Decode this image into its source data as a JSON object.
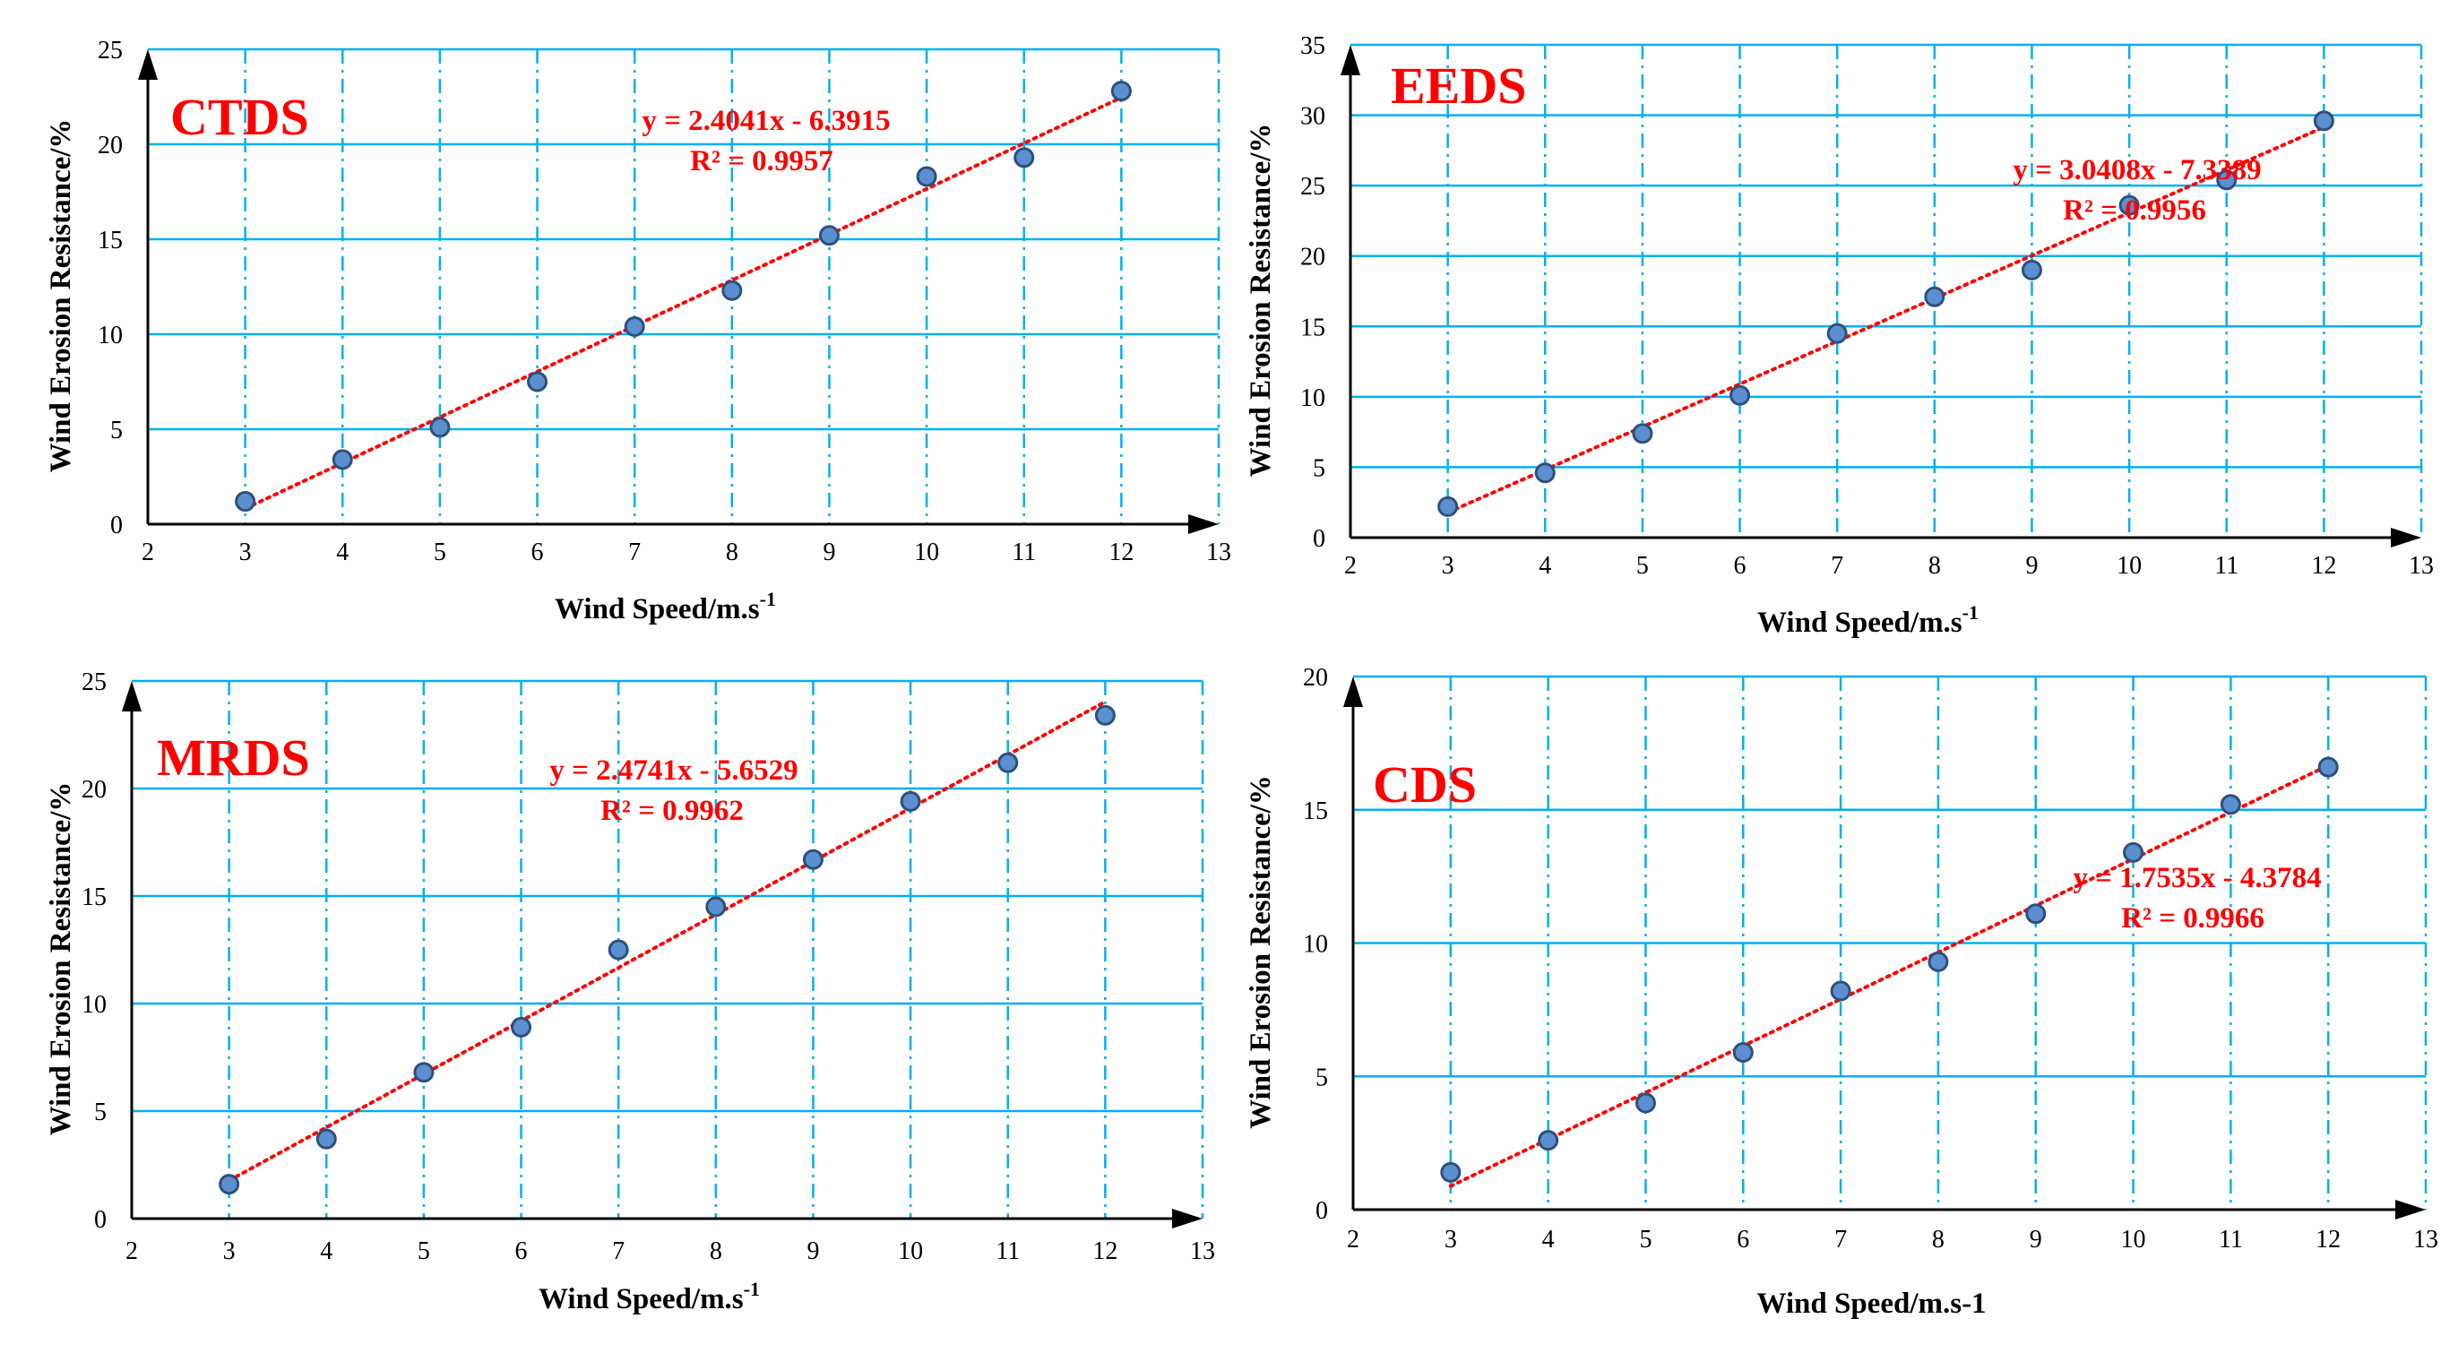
{
  "colors": {
    "grid": "#00b0f0",
    "axis": "#000000",
    "point_fill": "#5b8fd0",
    "point_stroke": "#2e4f7a",
    "trend": "#ff0000",
    "title": "#ff0000",
    "equation": "#ff0000"
  },
  "chart_data": [
    {
      "type": "scatter",
      "title": "CTDS",
      "xlabel": "Wind Speed/m.s",
      "xlabel_sup": "-1",
      "ylabel": "Wind Erosion Resistance/%",
      "xlim": [
        2,
        13
      ],
      "ylim": [
        0,
        25
      ],
      "xticks": [
        2,
        3,
        4,
        5,
        6,
        7,
        8,
        9,
        10,
        11,
        12,
        13
      ],
      "yticks": [
        0,
        5,
        10,
        15,
        20,
        25
      ],
      "x": [
        3,
        4,
        5,
        6,
        7,
        8,
        9,
        10,
        11,
        12
      ],
      "y": [
        1.2,
        3.4,
        5.1,
        7.5,
        10.4,
        12.3,
        15.2,
        18.3,
        19.3,
        22.8
      ],
      "trendline": {
        "slope": 2.4041,
        "intercept": -6.3915,
        "x_range": [
          3,
          12
        ]
      },
      "equation": "y = 2.4041x - 6.3915",
      "r2": "R² = 0.9957"
    },
    {
      "type": "scatter",
      "title": "EEDS",
      "xlabel": "Wind Speed/m.s",
      "xlabel_sup": "-1",
      "ylabel": "Wind Erosion Resistance/%",
      "xlim": [
        2,
        13
      ],
      "ylim": [
        0,
        35
      ],
      "xticks": [
        2,
        3,
        4,
        5,
        6,
        7,
        8,
        9,
        10,
        11,
        12,
        13
      ],
      "yticks": [
        0,
        5,
        10,
        15,
        20,
        25,
        30,
        35
      ],
      "x": [
        3,
        4,
        5,
        6,
        7,
        8,
        9,
        10,
        11,
        12
      ],
      "y": [
        2.2,
        4.6,
        7.4,
        10.1,
        14.5,
        17.1,
        19.0,
        23.6,
        25.4,
        29.6
      ],
      "trendline": {
        "slope": 3.0408,
        "intercept": -7.3389,
        "x_range": [
          3,
          12
        ]
      },
      "equation": "y = 3.0408x - 7.3389",
      "r2": "R² = 0.9956"
    },
    {
      "type": "scatter",
      "title": "MRDS",
      "xlabel": "Wind Speed/m.s",
      "xlabel_sup": "-1",
      "ylabel": "Wind Erosion Resistance/%",
      "xlim": [
        2,
        13
      ],
      "ylim": [
        0,
        25
      ],
      "xticks": [
        2,
        3,
        4,
        5,
        6,
        7,
        8,
        9,
        10,
        11,
        12,
        13
      ],
      "yticks": [
        0,
        5,
        10,
        15,
        20,
        25
      ],
      "x": [
        3,
        4,
        5,
        6,
        7,
        8,
        9,
        10,
        11,
        12
      ],
      "y": [
        1.6,
        3.7,
        6.8,
        8.9,
        12.5,
        14.5,
        16.7,
        19.4,
        21.2,
        23.4
      ],
      "trendline": {
        "slope": 2.4741,
        "intercept": -5.6529,
        "x_range": [
          3,
          12
        ]
      },
      "equation": "y = 2.4741x - 5.6529",
      "r2": "R² = 0.9962"
    },
    {
      "type": "scatter",
      "title": "CDS",
      "xlabel": "Wind Speed/m.s-1",
      "xlabel_sup": "",
      "ylabel": "Wind  Erosion Resistance/%",
      "xlim": [
        2,
        13
      ],
      "ylim": [
        0,
        20
      ],
      "xticks": [
        2,
        3,
        4,
        5,
        6,
        7,
        8,
        9,
        10,
        11,
        12,
        13
      ],
      "yticks": [
        0,
        5,
        10,
        15,
        20
      ],
      "x": [
        3,
        4,
        5,
        6,
        7,
        8,
        9,
        10,
        11,
        12
      ],
      "y": [
        1.4,
        2.6,
        4.0,
        5.9,
        8.2,
        9.3,
        11.1,
        13.4,
        15.2,
        16.6
      ],
      "trendline": {
        "slope": 1.7535,
        "intercept": -4.3784,
        "x_range": [
          3,
          12
        ]
      },
      "equation": "y = 1.7535x - 4.3784",
      "r2": "R² = 0.9966"
    }
  ]
}
